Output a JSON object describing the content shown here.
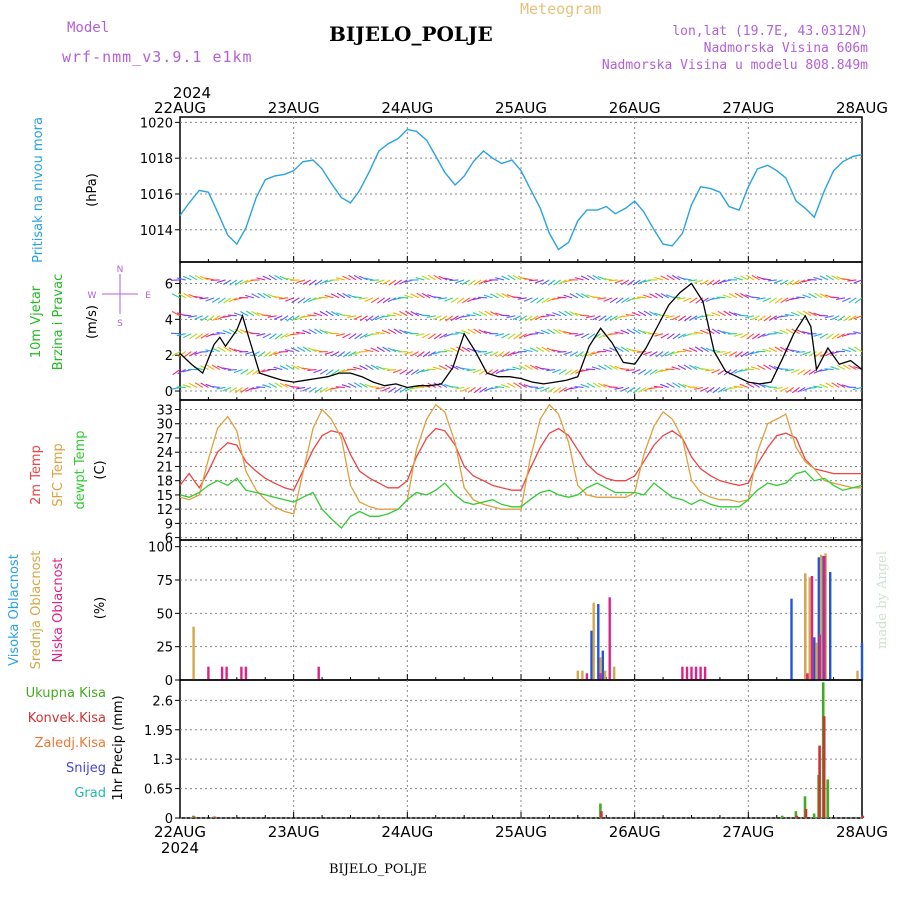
{
  "header": {
    "model_label": "Model",
    "model_name": "wrf-nmm_v3.9.1 e1km",
    "title": "BIJELO_POLJE",
    "chart_kind": "Meteogram",
    "lonlat": "lon,lat (19.7E, 43.0312N)",
    "elevation": "Nadmorska Visina 606m",
    "model_elevation": "Nadmorska Visina u modelu 808.849m",
    "footer_station": "BIJELO_POLJE",
    "credit": "made by Angel"
  },
  "colors": {
    "pressure": "#29a3e0",
    "t2m": "#ee4444",
    "tsfc": "#e0a040",
    "dewpt": "#33cc33",
    "cloud_high": "#2255dd",
    "cloud_mid": "#d4a84a",
    "cloud_low": "#dd2288",
    "rain_total": "#44aa22",
    "rain_conv": "#cc3333",
    "rain_frozen": "#ee7733",
    "snow": "#4444dd",
    "hail": "#22bbaa",
    "wind_line": "#000000"
  },
  "chart_data": [
    {
      "type": "line",
      "panel": "pressure",
      "ylabels": [
        "Pritisak na nivou mora",
        "(hPa)"
      ],
      "x_year": "2024",
      "x_ticks": [
        "22AUG",
        "23AUG",
        "24AUG",
        "25AUG",
        "26AUG",
        "27AUG",
        "28AUG"
      ],
      "x_unit": "day",
      "x_range": [
        0,
        6
      ],
      "ylim": [
        1012.2,
        1020.3
      ],
      "yticks": [
        1014,
        1016,
        1018,
        1020
      ],
      "grid": true,
      "series": [
        {
          "x": [
            0,
            0.08,
            0.17,
            0.25,
            0.33,
            0.42,
            0.5,
            0.58,
            0.67,
            0.75,
            0.83,
            0.92,
            1.0,
            1.08,
            1.17,
            1.25,
            1.33,
            1.42,
            1.5,
            1.58,
            1.67,
            1.75,
            1.83,
            1.92,
            2.0,
            2.08,
            2.17,
            2.25,
            2.33,
            2.42,
            2.5,
            2.58,
            2.67,
            2.75,
            2.83,
            2.92,
            3.0,
            3.08,
            3.17,
            3.25,
            3.33,
            3.42,
            3.5,
            3.58,
            3.67,
            3.75,
            3.83,
            3.92,
            4.0,
            4.08,
            4.17,
            4.25,
            4.33,
            4.42,
            4.5,
            4.58,
            4.67,
            4.75,
            4.83,
            4.92,
            5.0,
            5.08,
            5.17,
            5.25,
            5.33,
            5.42,
            5.5,
            5.58,
            5.67,
            5.75,
            5.83,
            5.92,
            6.0
          ],
          "y": [
            1014.8,
            1015.5,
            1016.2,
            1016.1,
            1015.0,
            1013.7,
            1013.2,
            1014.1,
            1015.8,
            1016.8,
            1017.0,
            1017.1,
            1017.3,
            1017.8,
            1017.9,
            1017.4,
            1016.6,
            1015.8,
            1015.5,
            1016.2,
            1017.3,
            1018.4,
            1018.8,
            1019.1,
            1019.6,
            1019.5,
            1019.0,
            1018.1,
            1017.2,
            1016.5,
            1017.0,
            1017.8,
            1018.4,
            1018.0,
            1017.7,
            1017.9,
            1017.3,
            1016.3,
            1015.2,
            1013.8,
            1012.9,
            1013.3,
            1014.5,
            1015.1,
            1015.1,
            1015.3,
            1014.9,
            1015.2,
            1015.6,
            1015.0,
            1014.0,
            1013.2,
            1013.1,
            1013.8,
            1015.4,
            1016.4,
            1016.3,
            1016.1,
            1015.3,
            1015.1,
            1016.4,
            1017.4,
            1017.6,
            1017.3,
            1016.9,
            1015.6,
            1015.2,
            1014.7,
            1016.2,
            1017.3,
            1017.8,
            1018.1,
            1018.2
          ]
        }
      ]
    },
    {
      "type": "line",
      "panel": "wind",
      "ylabels": [
        "10m Vjetar",
        "Brzina i Pravac",
        "(m/s)"
      ],
      "compass": [
        "N",
        "W",
        "E",
        "S"
      ],
      "x_range": [
        0,
        6
      ],
      "ylim": [
        -0.5,
        7.2
      ],
      "yticks": [
        0,
        2,
        4,
        6
      ],
      "grid": true,
      "series": [
        {
          "name": "speed",
          "x": [
            0,
            0.1,
            0.2,
            0.3,
            0.35,
            0.4,
            0.5,
            0.55,
            0.6,
            0.7,
            0.8,
            0.9,
            1.0,
            1.1,
            1.2,
            1.3,
            1.4,
            1.5,
            1.6,
            1.7,
            1.8,
            1.9,
            2.0,
            2.1,
            2.2,
            2.3,
            2.4,
            2.5,
            2.6,
            2.7,
            2.8,
            2.9,
            3.0,
            3.1,
            3.2,
            3.3,
            3.4,
            3.5,
            3.6,
            3.7,
            3.8,
            3.9,
            4.0,
            4.1,
            4.2,
            4.3,
            4.4,
            4.5,
            4.6,
            4.7,
            4.8,
            4.9,
            5.0,
            5.1,
            5.2,
            5.3,
            5.4,
            5.5,
            5.55,
            5.6,
            5.7,
            5.8,
            5.9,
            6.0
          ],
          "y": [
            2.1,
            1.5,
            1.0,
            2.6,
            3.0,
            2.5,
            3.4,
            4.2,
            3.1,
            1.0,
            0.8,
            0.6,
            0.5,
            0.6,
            0.7,
            0.8,
            1.0,
            1.0,
            0.8,
            0.5,
            0.3,
            0.4,
            0.2,
            0.3,
            0.3,
            0.4,
            1.3,
            3.2,
            2.2,
            1.0,
            0.8,
            0.8,
            0.7,
            0.5,
            0.4,
            0.5,
            0.6,
            0.8,
            2.5,
            3.5,
            2.7,
            1.6,
            1.5,
            2.4,
            3.6,
            4.8,
            5.5,
            6.0,
            5.0,
            2.2,
            1.1,
            0.8,
            0.5,
            0.4,
            0.5,
            1.8,
            3.2,
            4.2,
            3.6,
            1.2,
            2.4,
            1.5,
            1.7,
            1.2
          ]
        }
      ]
    },
    {
      "type": "line",
      "panel": "temperature",
      "ylabels": [
        "2m Temp",
        "SFC Temp",
        "dewpt Temp",
        "(C)"
      ],
      "x_range": [
        0,
        6
      ],
      "ylim": [
        5.5,
        35
      ],
      "yticks": [
        6,
        9,
        12,
        15,
        18,
        21,
        24,
        27,
        30,
        33
      ],
      "grid": true,
      "series": [
        {
          "name": "2m Temp",
          "x": [
            0,
            0.08,
            0.17,
            0.25,
            0.33,
            0.42,
            0.5,
            0.58,
            0.67,
            0.75,
            0.83,
            0.92,
            1.0,
            1.08,
            1.17,
            1.25,
            1.33,
            1.42,
            1.5,
            1.58,
            1.67,
            1.75,
            1.83,
            1.92,
            2.0,
            2.08,
            2.17,
            2.25,
            2.33,
            2.42,
            2.5,
            2.58,
            2.67,
            2.75,
            2.83,
            2.92,
            3.0,
            3.08,
            3.17,
            3.25,
            3.33,
            3.42,
            3.5,
            3.58,
            3.67,
            3.75,
            3.83,
            3.92,
            4.0,
            4.08,
            4.17,
            4.25,
            4.33,
            4.42,
            4.5,
            4.58,
            4.67,
            4.75,
            4.83,
            4.92,
            5.0,
            5.08,
            5.17,
            5.25,
            5.33,
            5.42,
            5.5,
            5.58,
            5.67,
            5.75,
            5.83,
            5.92,
            6.0
          ],
          "y": [
            17.0,
            19.5,
            16.5,
            20.0,
            24.0,
            26.0,
            25.5,
            22.0,
            20.0,
            18.5,
            17.5,
            16.5,
            16.0,
            20.0,
            24.5,
            27.5,
            28.5,
            28.0,
            23.5,
            20.0,
            18.5,
            17.5,
            16.5,
            16.5,
            18.0,
            23.0,
            27.0,
            29.0,
            28.5,
            25.5,
            21.0,
            19.0,
            18.0,
            17.0,
            16.5,
            16.0,
            16.0,
            20.5,
            25.0,
            28.0,
            29.0,
            27.5,
            24.5,
            21.5,
            19.5,
            18.5,
            18.0,
            18.0,
            19.0,
            22.0,
            25.5,
            27.5,
            28.5,
            27.0,
            23.0,
            20.5,
            19.0,
            18.0,
            17.5,
            17.0,
            17.5,
            21.5,
            25.0,
            27.5,
            28.0,
            27.0,
            22.5,
            20.5,
            20.0,
            19.5,
            19.5,
            19.5,
            19.5
          ]
        },
        {
          "name": "SFC Temp",
          "x": [
            0,
            0.08,
            0.17,
            0.25,
            0.33,
            0.42,
            0.5,
            0.58,
            0.67,
            0.75,
            0.83,
            0.92,
            1.0,
            1.08,
            1.17,
            1.25,
            1.33,
            1.42,
            1.5,
            1.58,
            1.67,
            1.75,
            1.83,
            1.92,
            2.0,
            2.08,
            2.17,
            2.25,
            2.33,
            2.42,
            2.5,
            2.58,
            2.67,
            2.75,
            2.83,
            2.92,
            3.0,
            3.08,
            3.17,
            3.25,
            3.33,
            3.42,
            3.5,
            3.58,
            3.67,
            3.75,
            3.83,
            3.92,
            4.0,
            4.08,
            4.17,
            4.25,
            4.33,
            4.42,
            4.5,
            4.58,
            4.67,
            4.75,
            4.83,
            4.92,
            5.0,
            5.08,
            5.17,
            5.25,
            5.33,
            5.42,
            5.5,
            5.58,
            5.67,
            5.75,
            5.83,
            5.92,
            6.0
          ],
          "y": [
            14.5,
            14.0,
            15.0,
            22.5,
            29.0,
            31.5,
            28.5,
            20.0,
            16.0,
            14.0,
            12.5,
            11.5,
            11.0,
            19.5,
            29.0,
            33.0,
            31.0,
            27.0,
            17.0,
            13.5,
            12.5,
            12.0,
            12.0,
            12.0,
            14.0,
            24.5,
            31.0,
            34.0,
            32.5,
            26.0,
            16.5,
            14.0,
            13.0,
            12.5,
            12.0,
            12.0,
            12.0,
            22.5,
            31.0,
            34.0,
            32.0,
            26.0,
            17.0,
            15.0,
            14.5,
            14.5,
            14.5,
            14.5,
            15.5,
            23.5,
            29.5,
            32.5,
            31.0,
            27.0,
            18.0,
            15.5,
            14.5,
            14.0,
            14.0,
            13.5,
            14.0,
            24.0,
            30.0,
            31.0,
            32.0,
            25.0,
            22.0,
            20.5,
            18.0,
            17.5,
            17.0,
            16.5,
            16.5
          ]
        },
        {
          "name": "dewpt Temp",
          "x": [
            0,
            0.08,
            0.17,
            0.25,
            0.33,
            0.42,
            0.5,
            0.58,
            0.67,
            0.75,
            0.83,
            0.92,
            1.0,
            1.08,
            1.17,
            1.25,
            1.33,
            1.42,
            1.5,
            1.58,
            1.67,
            1.75,
            1.83,
            1.92,
            2.0,
            2.08,
            2.17,
            2.25,
            2.33,
            2.42,
            2.5,
            2.58,
            2.67,
            2.75,
            2.83,
            2.92,
            3.0,
            3.08,
            3.17,
            3.25,
            3.33,
            3.42,
            3.5,
            3.58,
            3.67,
            3.75,
            3.83,
            3.92,
            4.0,
            4.08,
            4.17,
            4.25,
            4.33,
            4.42,
            4.5,
            4.58,
            4.67,
            4.75,
            4.83,
            4.92,
            5.0,
            5.08,
            5.17,
            5.25,
            5.33,
            5.42,
            5.5,
            5.58,
            5.67,
            5.75,
            5.83,
            5.92,
            6.0
          ],
          "y": [
            15.0,
            14.5,
            15.5,
            17.0,
            18.0,
            17.0,
            18.5,
            16.0,
            15.5,
            15.0,
            14.5,
            14.0,
            13.5,
            14.5,
            15.5,
            12.0,
            10.0,
            8.0,
            10.5,
            11.5,
            10.5,
            10.5,
            11.0,
            12.0,
            14.0,
            15.5,
            15.0,
            16.0,
            17.5,
            15.0,
            13.5,
            13.0,
            13.5,
            14.0,
            13.0,
            12.5,
            12.5,
            14.0,
            15.5,
            16.0,
            15.0,
            14.5,
            15.0,
            16.5,
            17.5,
            16.5,
            15.5,
            15.5,
            15.5,
            15.0,
            17.5,
            16.0,
            14.5,
            14.0,
            13.0,
            14.0,
            13.0,
            12.5,
            12.5,
            12.5,
            14.0,
            16.0,
            17.5,
            17.0,
            17.5,
            19.5,
            20.0,
            18.0,
            18.5,
            17.0,
            16.0,
            16.5,
            17.0
          ]
        }
      ]
    },
    {
      "type": "bar",
      "panel": "clouds",
      "ylabels": [
        "Visoka Oblacnost",
        "Srednja Oblacnost",
        "Niska Oblacnost",
        "(%)"
      ],
      "x_range": [
        0,
        6
      ],
      "ylim": [
        0,
        105
      ],
      "yticks": [
        0,
        25,
        50,
        75,
        100
      ],
      "grid": true,
      "series": [
        {
          "name": "Visoka Oblacnost",
          "x": [
            3.62,
            3.68,
            3.72,
            5.38,
            5.5,
            5.58,
            5.62,
            5.66,
            5.72,
            6.0
          ],
          "values": [
            37,
            57,
            22,
            61,
            79,
            32,
            92,
            93,
            81,
            28
          ]
        },
        {
          "name": "Srednja Oblacnost",
          "x": [
            0.12,
            3.5,
            3.54,
            3.64,
            3.7,
            3.74,
            3.82,
            5.5,
            5.54,
            5.6,
            5.64,
            5.68,
            5.96
          ],
          "values": [
            40,
            7,
            7,
            58,
            17,
            7,
            10,
            80,
            77,
            28,
            94,
            95,
            7
          ]
        },
        {
          "name": "Niska Oblacnost",
          "x": [
            0.25,
            0.37,
            0.41,
            0.54,
            0.58,
            1.22,
            3.58,
            3.7,
            3.78,
            4.42,
            4.46,
            4.5,
            4.54,
            4.58,
            4.62,
            5.52,
            5.56,
            5.63,
            5.67
          ],
          "values": [
            10,
            10,
            10,
            10,
            10,
            10,
            5,
            5,
            62,
            10,
            10,
            10,
            10,
            10,
            10,
            5,
            78,
            34,
            93
          ]
        }
      ]
    },
    {
      "type": "bar",
      "panel": "precip",
      "ylabels": [
        "Ukupna Kisa",
        "Konvek.Kisa",
        "Zaledj.Kisa",
        "Snijeg",
        "Grad",
        "1hr Precip (mm)"
      ],
      "x_range": [
        0,
        6
      ],
      "ylim": [
        0,
        3.05
      ],
      "yticks": [
        0,
        0.65,
        1.3,
        1.95,
        2.6
      ],
      "grid": true,
      "series": [
        {
          "name": "Ukupna Kisa",
          "x": [
            0.12,
            0.3,
            3.7,
            5.3,
            5.42,
            5.5,
            5.58,
            5.62,
            5.66,
            5.7
          ],
          "values": [
            0.05,
            0.03,
            0.32,
            0.05,
            0.15,
            0.48,
            0.1,
            0.95,
            3.0,
            0.85
          ]
        },
        {
          "name": "Konvek.Kisa",
          "x": [
            0.12,
            0.3,
            3.7,
            5.42,
            5.5,
            5.62,
            5.66,
            6.0
          ],
          "values": [
            0.03,
            0.03,
            0.15,
            0.05,
            0.2,
            1.6,
            2.25,
            0.05
          ]
        }
      ]
    }
  ]
}
